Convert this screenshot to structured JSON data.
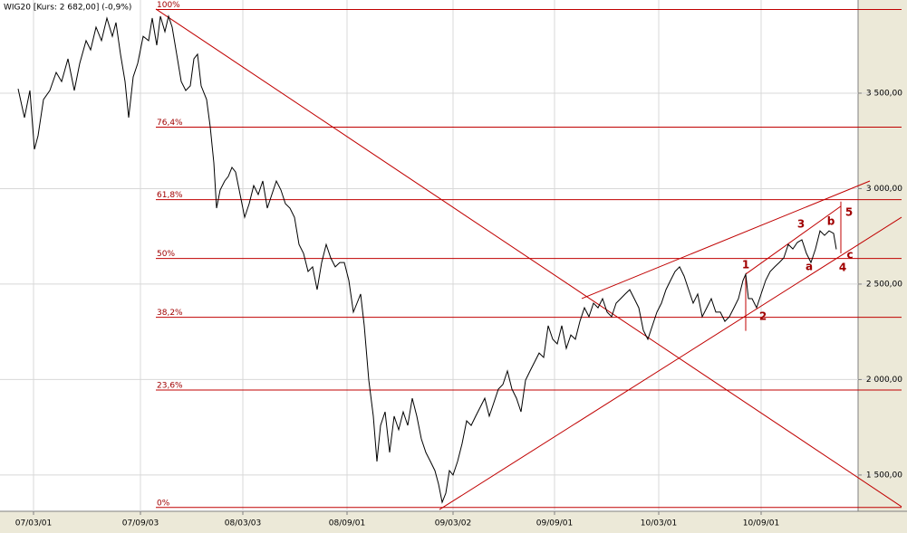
{
  "chart_data": {
    "type": "line",
    "title": "WIG20 [Kurs: 2 682,00] (-0,9%)",
    "xlim": [
      0,
      947
    ],
    "ylim": [
      1310,
      3988
    ],
    "grid": true,
    "xticks": [
      {
        "value": 37,
        "label": "07/03/01"
      },
      {
        "value": 155,
        "label": "07/09/03"
      },
      {
        "value": 268,
        "label": "08/03/03"
      },
      {
        "value": 383,
        "label": "08/09/01"
      },
      {
        "value": 500,
        "label": "09/03/02"
      },
      {
        "value": 612,
        "label": "09/09/01"
      },
      {
        "value": 727,
        "label": "10/03/01"
      },
      {
        "value": 840,
        "label": "10/09/01"
      }
    ],
    "yticks": [
      {
        "value": 1500,
        "label": "1 500,00"
      },
      {
        "value": 2000,
        "label": "2 000,00"
      },
      {
        "value": 2500,
        "label": "2 500,00"
      },
      {
        "value": 3000,
        "label": "3 000,00"
      },
      {
        "value": 3500,
        "label": "3 500,00"
      }
    ],
    "x": [
      20,
      27,
      33,
      38,
      42,
      48,
      55,
      62,
      68,
      75,
      82,
      88,
      95,
      100,
      106,
      112,
      118,
      124,
      128,
      133,
      138,
      142,
      147,
      152,
      158,
      164,
      168,
      173,
      177,
      182,
      186,
      190,
      195,
      200,
      205,
      210,
      214,
      218,
      222,
      228,
      232,
      236,
      239,
      243,
      248,
      252,
      256,
      260,
      265,
      270,
      275,
      280,
      285,
      290,
      295,
      300,
      305,
      310,
      315,
      320,
      325,
      330,
      335,
      340,
      345,
      350,
      355,
      360,
      365,
      370,
      375,
      380,
      385,
      390,
      394,
      398,
      402,
      407,
      412,
      416,
      420,
      425,
      430,
      435,
      440,
      445,
      450,
      455,
      460,
      465,
      470,
      475,
      480,
      484,
      488,
      492,
      496,
      500,
      505,
      510,
      515,
      520,
      525,
      530,
      535,
      540,
      545,
      550,
      555,
      560,
      565,
      570,
      575,
      580,
      585,
      590,
      595,
      600,
      605,
      610,
      615,
      620,
      625,
      630,
      635,
      640,
      645,
      650,
      655,
      660,
      665,
      670,
      675,
      680,
      685,
      690,
      695,
      700,
      705,
      710,
      715,
      720,
      725,
      730,
      735,
      740,
      745,
      750,
      755,
      760,
      765,
      770,
      775,
      780,
      785,
      790,
      795,
      800,
      805,
      810,
      815,
      820,
      823,
      826,
      830,
      835,
      840,
      845,
      850,
      855,
      860,
      865,
      870,
      875,
      880,
      885,
      890,
      895,
      900,
      905,
      910,
      915,
      920,
      923
    ],
    "series": [
      {
        "color": "#000000",
        "values": [
          3523,
          3372,
          3514,
          3206,
          3277,
          3467,
          3514,
          3609,
          3561,
          3680,
          3514,
          3656,
          3775,
          3727,
          3846,
          3775,
          3893,
          3798,
          3870,
          3704,
          3561,
          3372,
          3585,
          3656,
          3798,
          3775,
          3893,
          3751,
          3903,
          3822,
          3903,
          3846,
          3704,
          3561,
          3514,
          3538,
          3680,
          3704,
          3538,
          3467,
          3324,
          3135,
          2898,
          2993,
          3040,
          3064,
          3111,
          3087,
          2969,
          2850,
          2921,
          3016,
          2969,
          3040,
          2898,
          2969,
          3040,
          2993,
          2921,
          2898,
          2850,
          2708,
          2661,
          2566,
          2590,
          2471,
          2613,
          2708,
          2637,
          2590,
          2613,
          2613,
          2519,
          2353,
          2400,
          2448,
          2282,
          1997,
          1808,
          1571,
          1760,
          1831,
          1618,
          1808,
          1737,
          1831,
          1760,
          1902,
          1808,
          1689,
          1618,
          1571,
          1523,
          1452,
          1357,
          1405,
          1523,
          1500,
          1571,
          1665,
          1784,
          1760,
          1808,
          1855,
          1902,
          1808,
          1879,
          1950,
          1974,
          2045,
          1950,
          1902,
          1831,
          1997,
          2045,
          2092,
          2139,
          2116,
          2282,
          2211,
          2187,
          2282,
          2163,
          2234,
          2211,
          2305,
          2376,
          2329,
          2400,
          2376,
          2424,
          2353,
          2329,
          2400,
          2424,
          2448,
          2471,
          2424,
          2376,
          2258,
          2211,
          2282,
          2353,
          2400,
          2471,
          2519,
          2566,
          2590,
          2542,
          2471,
          2400,
          2448,
          2329,
          2376,
          2424,
          2353,
          2353,
          2305,
          2329,
          2376,
          2424,
          2519,
          2552,
          2424,
          2424,
          2376,
          2448,
          2519,
          2566,
          2590,
          2613,
          2637,
          2708,
          2684,
          2718,
          2732,
          2661,
          2613,
          2684,
          2779,
          2755,
          2779,
          2765,
          2682
        ]
      }
    ],
    "fib_color": "#c00000",
    "fib_levels": [
      {
        "value": 3938,
        "label": "100%"
      },
      {
        "value": 3322,
        "label": "76,4%"
      },
      {
        "value": 2942,
        "label": "61,8%"
      },
      {
        "value": 2634,
        "label": "50%"
      },
      {
        "value": 2326,
        "label": "38,2%"
      },
      {
        "value": 1945,
        "label": "23,6%"
      },
      {
        "value": 1330,
        "label": "0%"
      }
    ],
    "trendlines": [
      {
        "x": [
          172,
          995
        ],
        "y": [
          3941,
          1334
        ]
      },
      {
        "x": [
          485,
          995
        ],
        "y": [
          1319,
          2850
        ]
      },
      {
        "x": [
          642,
          960
        ],
        "y": [
          2424,
          3040
        ]
      },
      {
        "x": [
          823,
          928
        ],
        "y": [
          2552,
          2908
        ]
      },
      {
        "x": [
          823,
          823
        ],
        "y": [
          2255,
          2552
        ]
      },
      {
        "x": [
          928,
          928
        ],
        "y": [
          2661,
          2932
        ]
      }
    ],
    "annotations": [
      {
        "text": "1",
        "x": 823,
        "y": 2599
      },
      {
        "text": "2",
        "x": 842,
        "y": 2329
      },
      {
        "text": "3",
        "x": 884,
        "y": 2812
      },
      {
        "text": "a",
        "x": 893,
        "y": 2590
      },
      {
        "text": "b",
        "x": 917,
        "y": 2827
      },
      {
        "text": "4",
        "x": 930,
        "y": 2585
      },
      {
        "text": "c",
        "x": 938,
        "y": 2651
      },
      {
        "text": "5",
        "x": 937,
        "y": 2874
      }
    ]
  }
}
